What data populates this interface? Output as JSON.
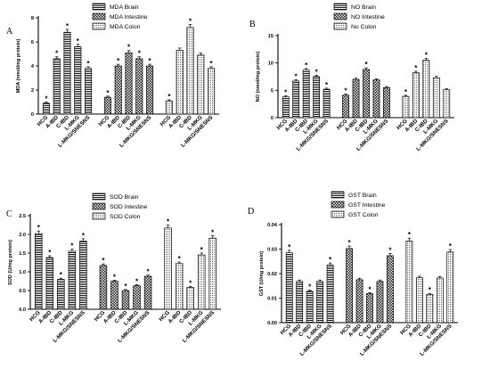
{
  "chart_data": [
    {
      "panel_letter": "A",
      "type": "bar",
      "ylabel": "MDA (nmol/mg protein)",
      "ylim": [
        0,
        8
      ],
      "yticks": [
        "0",
        "2",
        "4",
        "6",
        "8"
      ],
      "categories": [
        "HCG",
        "A-IBD",
        "C-IBD",
        "L-MKG",
        "L-MKG/SNESNS"
      ],
      "legend_position": "top-center",
      "series": [
        {
          "name": "MDA Brain",
          "pattern": "hlines",
          "values": [
            0.9,
            4.6,
            6.8,
            5.6,
            3.8
          ],
          "significant": [
            true,
            true,
            true,
            true,
            true
          ]
        },
        {
          "name": "MDA Intestine",
          "pattern": "check",
          "values": [
            1.4,
            4.0,
            5.1,
            4.6,
            4.0
          ],
          "significant": [
            true,
            true,
            true,
            true,
            true
          ]
        },
        {
          "name": "MDA Colon",
          "pattern": "dots",
          "values": [
            1.1,
            5.3,
            7.2,
            4.9,
            3.8
          ],
          "significant": [
            true,
            false,
            true,
            false,
            true
          ]
        }
      ]
    },
    {
      "panel_letter": "B",
      "type": "bar",
      "ylabel": "NO (nmol/mg protein)",
      "ylim": [
        0,
        15
      ],
      "yticks": [
        "0",
        "5",
        "10",
        "15"
      ],
      "categories": [
        "HCG",
        "A-IBD",
        "C-IBD",
        "L-MKG",
        "L-MKG/SNESNS"
      ],
      "legend_position": "top-center",
      "series": [
        {
          "name": "NO Brain",
          "pattern": "hlines",
          "values": [
            3.8,
            6.7,
            8.7,
            7.5,
            5.2
          ],
          "significant": [
            true,
            true,
            true,
            true,
            true
          ]
        },
        {
          "name": "NO Intestine",
          "pattern": "check",
          "values": [
            4.1,
            7.0,
            8.8,
            6.9,
            5.5
          ],
          "significant": [
            true,
            false,
            true,
            false,
            false
          ]
        },
        {
          "name": "No Colon",
          "pattern": "dots",
          "values": [
            3.9,
            8.2,
            10.5,
            7.3,
            5.1
          ],
          "significant": [
            true,
            true,
            true,
            false,
            false
          ]
        }
      ]
    },
    {
      "panel_letter": "C",
      "type": "bar",
      "ylabel": "SOD (U/mg protein)",
      "ylim": [
        0,
        2.5
      ],
      "yticks": [
        "0.0",
        "0.5",
        "1.0",
        "1.5",
        "2.0",
        "2.5"
      ],
      "categories": [
        "HCG",
        "A-IBD",
        "C-IBD",
        "L-MKG",
        "L-MKG/SNESNS"
      ],
      "legend_position": "top-center",
      "series": [
        {
          "name": "SOD Brain",
          "pattern": "hlines",
          "values": [
            2.02,
            1.38,
            0.8,
            1.55,
            1.82
          ],
          "significant": [
            true,
            true,
            true,
            true,
            true
          ]
        },
        {
          "name": "SOD Intestine",
          "pattern": "check",
          "values": [
            1.17,
            0.75,
            0.5,
            0.63,
            0.88
          ],
          "significant": [
            true,
            true,
            true,
            true,
            true
          ]
        },
        {
          "name": "SOD Colon",
          "pattern": "dots",
          "values": [
            2.17,
            1.22,
            0.58,
            1.45,
            1.9
          ],
          "significant": [
            true,
            true,
            true,
            true,
            true
          ]
        }
      ]
    },
    {
      "panel_letter": "D",
      "type": "bar",
      "ylabel": "GST (U/mg protein)",
      "ylim": [
        0,
        0.04
      ],
      "yticks": [
        "0.00",
        "0.01",
        "0.02",
        "0.03",
        "0.04"
      ],
      "categories": [
        "HCG",
        "A-IBD",
        "C-IBD",
        "L-MKG",
        "L-MKG/SNESNS"
      ],
      "legend_position": "top-center",
      "series": [
        {
          "name": "GST Brain",
          "pattern": "hlines",
          "values": [
            0.0285,
            0.0168,
            0.0128,
            0.0168,
            0.0235
          ],
          "significant": [
            true,
            false,
            true,
            false,
            true
          ]
        },
        {
          "name": "GST Intestine",
          "pattern": "check",
          "values": [
            0.0302,
            0.0175,
            0.0118,
            0.0168,
            0.0273
          ],
          "significant": [
            true,
            false,
            true,
            false,
            true
          ]
        },
        {
          "name": "GST Colon",
          "pattern": "dots",
          "values": [
            0.0333,
            0.0183,
            0.0115,
            0.0182,
            0.0288
          ],
          "significant": [
            true,
            false,
            true,
            false,
            true
          ]
        }
      ]
    }
  ]
}
